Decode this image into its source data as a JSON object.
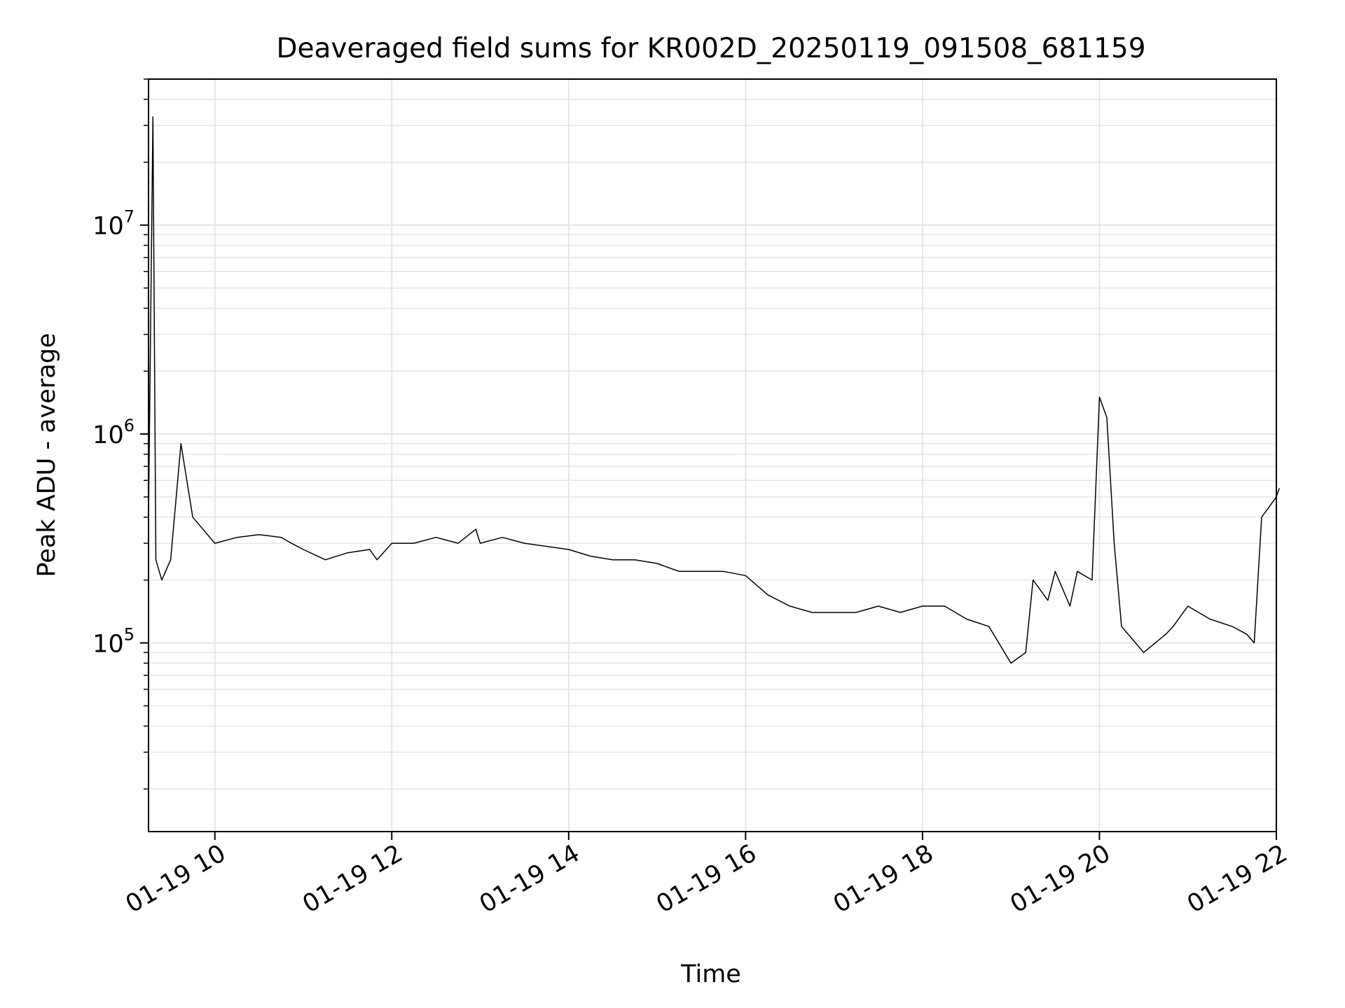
{
  "chart_data": {
    "type": "line",
    "title": "Deaveraged field sums for KR002D_20250119_091508_681159",
    "xlabel": "Time",
    "ylabel": "Peak ADU - average",
    "x_scale": "time",
    "y_scale": "log",
    "xlim": [
      "2025-01-19T09:15",
      "2025-01-19T22:00"
    ],
    "ylim": [
      12500,
      50000000
    ],
    "x_ticks": [
      {
        "t": "2025-01-19T10:00",
        "label": "01-19 10"
      },
      {
        "t": "2025-01-19T12:00",
        "label": "01-19 12"
      },
      {
        "t": "2025-01-19T14:00",
        "label": "01-19 14"
      },
      {
        "t": "2025-01-19T16:00",
        "label": "01-19 16"
      },
      {
        "t": "2025-01-19T18:00",
        "label": "01-19 18"
      },
      {
        "t": "2025-01-19T20:00",
        "label": "01-19 20"
      },
      {
        "t": "2025-01-19T22:00",
        "label": "01-19 22"
      }
    ],
    "y_ticks": [
      {
        "value": 100000,
        "base": "10",
        "exp": "5"
      },
      {
        "value": 1000000,
        "base": "10",
        "exp": "6"
      },
      {
        "value": 10000000,
        "base": "10",
        "exp": "7"
      }
    ],
    "grid": true,
    "grid_color": "#e6e6e6",
    "line_color": "#000000",
    "series": [
      {
        "x": [
          "2025-01-19T09:15",
          "2025-01-19T09:18",
          "2025-01-19T09:20",
          "2025-01-19T09:24",
          "2025-01-19T09:30",
          "2025-01-19T09:37",
          "2025-01-19T09:45",
          "2025-01-19T10:00",
          "2025-01-19T10:15",
          "2025-01-19T10:30",
          "2025-01-19T10:45",
          "2025-01-19T10:52",
          "2025-01-19T11:00",
          "2025-01-19T11:15",
          "2025-01-19T11:30",
          "2025-01-19T11:45",
          "2025-01-19T11:50",
          "2025-01-19T12:00",
          "2025-01-19T12:15",
          "2025-01-19T12:30",
          "2025-01-19T12:45",
          "2025-01-19T12:57",
          "2025-01-19T13:00",
          "2025-01-19T13:15",
          "2025-01-19T13:30",
          "2025-01-19T13:45",
          "2025-01-19T14:00",
          "2025-01-19T14:15",
          "2025-01-19T14:30",
          "2025-01-19T14:45",
          "2025-01-19T15:00",
          "2025-01-19T15:15",
          "2025-01-19T15:30",
          "2025-01-19T15:45",
          "2025-01-19T16:00",
          "2025-01-19T16:15",
          "2025-01-19T16:30",
          "2025-01-19T16:45",
          "2025-01-19T17:00",
          "2025-01-19T17:15",
          "2025-01-19T17:30",
          "2025-01-19T17:45",
          "2025-01-19T18:00",
          "2025-01-19T18:15",
          "2025-01-19T18:30",
          "2025-01-19T18:45",
          "2025-01-19T19:00",
          "2025-01-19T19:10",
          "2025-01-19T19:15",
          "2025-01-19T19:25",
          "2025-01-19T19:30",
          "2025-01-19T19:40",
          "2025-01-19T19:45",
          "2025-01-19T19:55",
          "2025-01-19T20:00",
          "2025-01-19T20:05",
          "2025-01-19T20:10",
          "2025-01-19T20:15",
          "2025-01-19T20:30",
          "2025-01-19T20:45",
          "2025-01-19T20:50",
          "2025-01-19T21:00",
          "2025-01-19T21:15",
          "2025-01-19T21:30",
          "2025-01-19T21:40",
          "2025-01-19T21:45",
          "2025-01-19T21:50",
          "2025-01-19T22:00",
          "2025-01-19T22:02"
        ],
        "y": [
          400000,
          33000000,
          250000,
          200000,
          250000,
          900000,
          400000,
          300000,
          320000,
          330000,
          320000,
          300000,
          280000,
          250000,
          270000,
          280000,
          250000,
          300000,
          300000,
          320000,
          300000,
          350000,
          300000,
          320000,
          300000,
          290000,
          280000,
          260000,
          250000,
          250000,
          240000,
          220000,
          220000,
          220000,
          210000,
          170000,
          150000,
          140000,
          140000,
          140000,
          150000,
          140000,
          150000,
          150000,
          130000,
          120000,
          80000,
          90000,
          200000,
          160000,
          220000,
          150000,
          220000,
          200000,
          1500000,
          1200000,
          300000,
          120000,
          90000,
          110000,
          120000,
          150000,
          130000,
          120000,
          110000,
          100000,
          400000,
          500000,
          550000
        ]
      }
    ]
  }
}
